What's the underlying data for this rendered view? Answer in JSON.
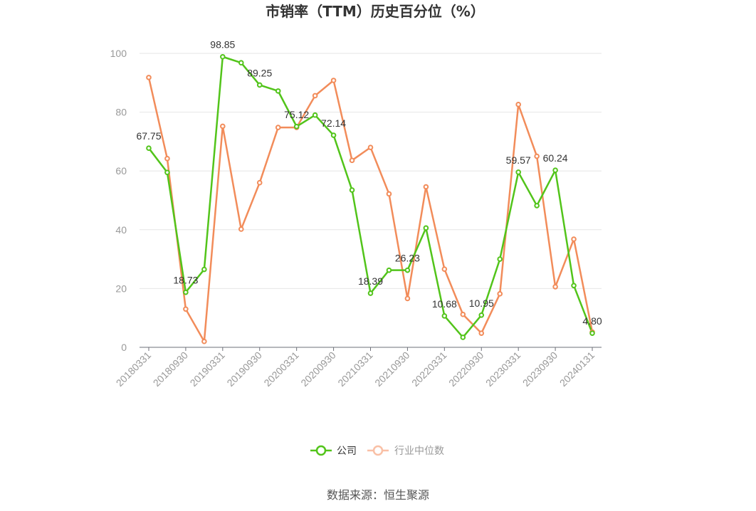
{
  "chart_data": {
    "type": "line",
    "title": "市销率（TTM）历史百分位（%）",
    "xlabel": "",
    "ylabel": "",
    "ylim": [
      0,
      100
    ],
    "yticks": [
      0,
      20,
      40,
      60,
      80,
      100
    ],
    "grid": true,
    "legend_position": "bottom-center",
    "x": [
      "20180331",
      "20180630",
      "20180930",
      "20181231",
      "20190331",
      "20190630",
      "20190930",
      "20191231",
      "20200331",
      "20200630",
      "20200930",
      "20201231",
      "20210331",
      "20210630",
      "20210930",
      "20211231",
      "20220331",
      "20220630",
      "20220930",
      "20221231",
      "20230331",
      "20230630",
      "20230930",
      "20231231",
      "20240131"
    ],
    "x_tick_labels": [
      "20180331",
      "20180930",
      "20190331",
      "20190930",
      "20200331",
      "20200930",
      "20210331",
      "20210930",
      "20220331",
      "20220930",
      "20230331",
      "20230930",
      "20240131"
    ],
    "series": [
      {
        "name": "公司",
        "color": "#52c41a",
        "values": [
          67.75,
          59.5,
          18.73,
          26.5,
          98.85,
          96.8,
          89.25,
          87.2,
          75.12,
          79.0,
          72.14,
          53.5,
          18.39,
          26.23,
          26.23,
          40.6,
          10.68,
          3.4,
          10.95,
          30.0,
          59.57,
          48.2,
          60.24,
          21.0,
          4.8
        ],
        "data_labels": [
          {
            "index": 0,
            "text": "67.75"
          },
          {
            "index": 2,
            "text": "18.73"
          },
          {
            "index": 4,
            "text": "98.85"
          },
          {
            "index": 6,
            "text": "89.25"
          },
          {
            "index": 8,
            "text": "75.12"
          },
          {
            "index": 10,
            "text": "72.14"
          },
          {
            "index": 12,
            "text": "18.39"
          },
          {
            "index": 14,
            "text": "26.23"
          },
          {
            "index": 16,
            "text": "10.68"
          },
          {
            "index": 18,
            "text": "10.95"
          },
          {
            "index": 20,
            "text": "59.57"
          },
          {
            "index": 22,
            "text": "60.24"
          },
          {
            "index": 24,
            "text": "4.80"
          }
        ]
      },
      {
        "name": "行业中位数",
        "color": "#f28c5a",
        "values": [
          91.8,
          64.2,
          13.0,
          2.0,
          75.2,
          40.2,
          56.0,
          74.8,
          74.8,
          85.6,
          90.8,
          63.6,
          68.0,
          52.2,
          16.6,
          54.6,
          26.6,
          11.2,
          4.8,
          18.2,
          82.6,
          65.0,
          20.6,
          36.8,
          5.2
        ]
      }
    ]
  },
  "legend": {
    "company": "公司",
    "industry": "行业中位数"
  },
  "source": "数据来源：恒生聚源"
}
